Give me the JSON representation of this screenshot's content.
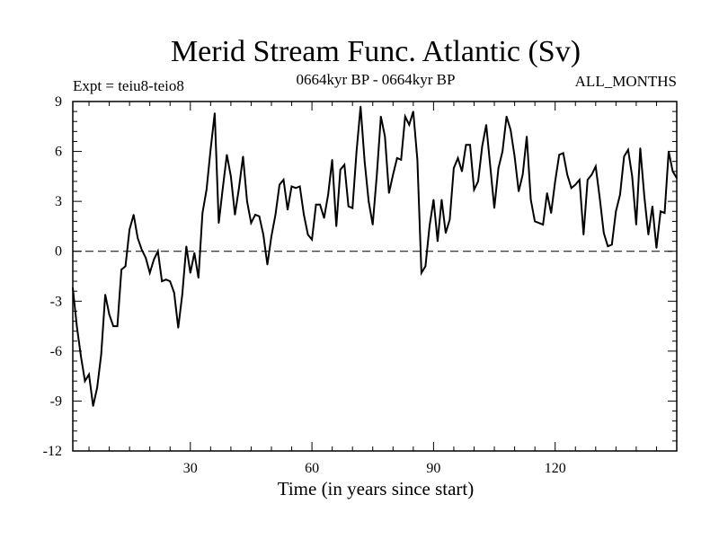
{
  "chart_data": {
    "type": "line",
    "title": "Merid Stream Func. Atlantic (Sv)",
    "subtitle_left": "Expt = teiu8-teio8",
    "subtitle_center": "0664kyr BP - 0664kyr BP",
    "subtitle_right": "ALL_MONTHS",
    "xlabel": "Time (in years since start)",
    "ylabel": "",
    "xlim": [
      1,
      150
    ],
    "ylim": [
      -12,
      9
    ],
    "xticks": [
      30,
      60,
      90,
      120
    ],
    "yticks": [
      -12,
      -9,
      -6,
      -3,
      0,
      3,
      6,
      9
    ],
    "zero_line": 0,
    "series": [
      {
        "name": "Merid Stream Func. Atlantic",
        "x": [
          1,
          2,
          3,
          4,
          5,
          6,
          7,
          8,
          9,
          10,
          11,
          12,
          13,
          14,
          15,
          16,
          17,
          18,
          19,
          20,
          21,
          22,
          23,
          24,
          25,
          26,
          27,
          28,
          29,
          30,
          31,
          32,
          33,
          34,
          35,
          36,
          37,
          38,
          39,
          40,
          41,
          42,
          43,
          44,
          45,
          46,
          47,
          48,
          49,
          50,
          51,
          52,
          53,
          54,
          55,
          56,
          57,
          58,
          59,
          60,
          61,
          62,
          63,
          64,
          65,
          66,
          67,
          68,
          69,
          70,
          71,
          72,
          73,
          74,
          75,
          76,
          77,
          78,
          79,
          80,
          81,
          82,
          83,
          84,
          85,
          86,
          87,
          88,
          89,
          90,
          91,
          92,
          93,
          94,
          95,
          96,
          97,
          98,
          99,
          100,
          101,
          102,
          103,
          104,
          105,
          106,
          107,
          108,
          109,
          110,
          111,
          112,
          113,
          114,
          115,
          116,
          117,
          118,
          119,
          120,
          121,
          122,
          123,
          124,
          125,
          126,
          127,
          128,
          129,
          130,
          131,
          132,
          133,
          134,
          135,
          136,
          137,
          138,
          139,
          140,
          141,
          142,
          143,
          144,
          145,
          146,
          147,
          148,
          149,
          150
        ],
        "values": [
          -2.2,
          -4.5,
          -6.3,
          -7.8,
          -7.4,
          -9.3,
          -8.2,
          -6.2,
          -2.6,
          -3.8,
          -4.5,
          -4.5,
          -1.1,
          -0.9,
          1.3,
          2.2,
          0.8,
          0.1,
          -0.4,
          -1.3,
          -0.5,
          0.0,
          -1.8,
          -1.7,
          -1.8,
          -2.5,
          -4.6,
          -2.6,
          0.3,
          -1.3,
          -0.1,
          -1.6,
          2.3,
          3.7,
          6.1,
          8.3,
          1.7,
          3.8,
          5.8,
          4.5,
          2.2,
          3.8,
          5.7,
          3.0,
          1.7,
          2.2,
          2.1,
          1.0,
          -0.8,
          0.9,
          2.2,
          4.0,
          4.3,
          2.5,
          3.9,
          3.8,
          3.9,
          2.2,
          1.0,
          0.7,
          2.8,
          2.8,
          2.0,
          3.4,
          5.5,
          1.5,
          4.9,
          5.2,
          2.7,
          2.6,
          6.0,
          8.7,
          5.4,
          3.0,
          1.6,
          4.6,
          8.1,
          6.9,
          3.5,
          4.6,
          5.6,
          5.5,
          8.1,
          7.6,
          8.4,
          5.5,
          -1.3,
          -0.9,
          1.5,
          3.1,
          0.6,
          3.1,
          1.1,
          1.9,
          5.0,
          5.6,
          4.8,
          6.4,
          6.4,
          3.7,
          4.2,
          6.3,
          7.6,
          5.1,
          2.6,
          5.0,
          6.0,
          8.1,
          7.3,
          5.7,
          3.6,
          4.6,
          6.9,
          3.1,
          1.8,
          1.7,
          1.6,
          3.5,
          2.3,
          4.2,
          5.8,
          5.9,
          4.6,
          3.8,
          4.0,
          4.3,
          1.0,
          4.3,
          4.6,
          5.1,
          3.2,
          1.1,
          0.3,
          0.4,
          2.4,
          3.4,
          5.7,
          6.1,
          4.5,
          1.6,
          6.2,
          3.3,
          1.0,
          2.7,
          0.2,
          2.4,
          2.3,
          6.0,
          4.8,
          4.4
        ]
      }
    ]
  }
}
